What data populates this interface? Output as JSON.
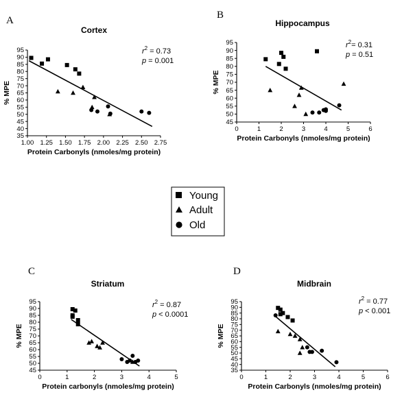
{
  "chart_data": [
    {
      "panel": "A",
      "type": "scatter",
      "title": "Cortex",
      "xlabel": "Protein Carbonyls (nmoles/mg protein)",
      "ylabel": "% MPE",
      "xlim": [
        1.0,
        2.75
      ],
      "ylim": [
        35,
        95
      ],
      "xticks": [
        "1.00",
        "1.25",
        "1.50",
        "1.75",
        "2.00",
        "2.25",
        "2.50",
        "2.75"
      ],
      "yticks": [
        "35",
        "40",
        "45",
        "50",
        "55",
        "60",
        "65",
        "70",
        "75",
        "80",
        "85",
        "90",
        "95"
      ],
      "stats": {
        "r2_label": "r",
        "r2_sup": "2",
        "r2_value": " = 0.73",
        "p_label": "p",
        "p_value": "  = 0.001"
      },
      "series": [
        {
          "name": "Young",
          "marker": "square",
          "points": [
            [
              1.05,
              89.5
            ],
            [
              1.19,
              85.5
            ],
            [
              1.27,
              88.5
            ],
            [
              1.52,
              84.5
            ],
            [
              1.63,
              81.5
            ],
            [
              1.68,
              78.5
            ]
          ]
        },
        {
          "name": "Adult",
          "marker": "triangle",
          "points": [
            [
              1.4,
              66
            ],
            [
              1.6,
              65
            ],
            [
              1.73,
              69
            ],
            [
              1.85,
              55
            ],
            [
              1.88,
              62
            ],
            [
              2.08,
              50
            ]
          ]
        },
        {
          "name": "Old",
          "marker": "circle",
          "points": [
            [
              1.84,
              53
            ],
            [
              1.92,
              52
            ],
            [
              2.06,
              55.5
            ],
            [
              2.09,
              50.5
            ],
            [
              2.5,
              52
            ],
            [
              2.6,
              51
            ]
          ]
        }
      ],
      "fit_line": [
        [
          1.02,
          87.5
        ],
        [
          2.64,
          41.5
        ]
      ]
    },
    {
      "panel": "B",
      "type": "scatter",
      "title": "Hippocampus",
      "xlabel": "Protein Carbonyls (nmoles/mg protein)",
      "ylabel": "% MPE",
      "xlim": [
        0,
        6
      ],
      "ylim": [
        45,
        95
      ],
      "xticks": [
        "0",
        "1",
        "2",
        "3",
        "4",
        "5",
        "6"
      ],
      "yticks": [
        "45",
        "50",
        "55",
        "60",
        "65",
        "70",
        "75",
        "80",
        "85",
        "90",
        "95"
      ],
      "stats": {
        "r2_label": "r",
        "r2_sup": "2",
        "r2_value": "= 0.31",
        "p_label": "p",
        "p_value": " = 0.51"
      },
      "series": [
        {
          "name": "Young",
          "marker": "square",
          "points": [
            [
              1.3,
              84.5
            ],
            [
              1.9,
              81.5
            ],
            [
              2.0,
              88.5
            ],
            [
              2.1,
              86
            ],
            [
              2.2,
              78.5
            ],
            [
              3.6,
              89.5
            ]
          ]
        },
        {
          "name": "Adult",
          "marker": "triangle",
          "points": [
            [
              1.5,
              65
            ],
            [
              2.6,
              55
            ],
            [
              2.8,
              62
            ],
            [
              2.9,
              66.5
            ],
            [
              3.1,
              50
            ],
            [
              4.8,
              69
            ]
          ]
        },
        {
          "name": "Old",
          "marker": "circle",
          "points": [
            [
              3.4,
              51
            ],
            [
              3.7,
              51
            ],
            [
              3.9,
              52.5
            ],
            [
              4.0,
              52
            ],
            [
              4.6,
              55.5
            ],
            [
              4.0,
              53
            ]
          ]
        }
      ],
      "fit_line": [
        [
          1.3,
          80
        ],
        [
          4.7,
          52.5
        ]
      ]
    },
    {
      "panel": "C",
      "type": "scatter",
      "title": "Striatum",
      "xlabel": "Protein carbonyls (nmoles/mg protein)",
      "ylabel": "% MPE",
      "xlim": [
        0,
        5
      ],
      "ylim": [
        45,
        95
      ],
      "xticks": [
        "0",
        "1",
        "2",
        "3",
        "4",
        "5"
      ],
      "yticks": [
        "45",
        "50",
        "55",
        "60",
        "65",
        "70",
        "75",
        "80",
        "85",
        "90",
        "95"
      ],
      "stats": {
        "r2_label": "r",
        "r2_sup": "2",
        "r2_value": " = 0.87",
        "p_label": "p",
        "p_value": " < 0.0001"
      },
      "series": [
        {
          "name": "Young",
          "marker": "square",
          "points": [
            [
              1.2,
              89.5
            ],
            [
              1.3,
              88.5
            ],
            [
              1.2,
              85
            ],
            [
              1.2,
              84
            ],
            [
              1.4,
              81.5
            ],
            [
              1.4,
              78.5
            ]
          ]
        },
        {
          "name": "Adult",
          "marker": "triangle",
          "points": [
            [
              1.8,
              65
            ],
            [
              1.9,
              66
            ],
            [
              2.1,
              62.5
            ],
            [
              2.2,
              61.5
            ],
            [
              2.3,
              65
            ],
            [
              3.4,
              51
            ]
          ]
        },
        {
          "name": "Old",
          "marker": "circle",
          "points": [
            [
              3.0,
              53
            ],
            [
              3.3,
              52
            ],
            [
              3.4,
              55.5
            ],
            [
              3.5,
              51
            ],
            [
              3.6,
              52
            ],
            [
              3.2,
              51
            ]
          ]
        }
      ],
      "fit_line": [
        [
          1.15,
          82
        ],
        [
          3.65,
          48
        ]
      ]
    },
    {
      "panel": "D",
      "type": "scatter",
      "title": "Midbrain",
      "xlabel": "Protein Carbonyls (nmoles/mg protein)",
      "ylabel": "% MPE",
      "xlim": [
        0,
        6
      ],
      "ylim": [
        35,
        95
      ],
      "xticks": [
        "0",
        "1",
        "2",
        "3",
        "4",
        "5",
        "6"
      ],
      "yticks": [
        "35",
        "40",
        "45",
        "50",
        "55",
        "60",
        "65",
        "70",
        "75",
        "80",
        "85",
        "90",
        "95"
      ],
      "stats": {
        "r2_label": "r",
        "r2_sup": "2",
        "r2_value": " = 0.77",
        "p_label": "p",
        "p_value": "  < 0.001"
      },
      "series": [
        {
          "name": "Young",
          "marker": "square",
          "points": [
            [
              1.5,
              89.5
            ],
            [
              1.6,
              88
            ],
            [
              1.7,
              85
            ],
            [
              1.6,
              84
            ],
            [
              1.9,
              81.5
            ],
            [
              2.1,
              78.5
            ]
          ]
        },
        {
          "name": "Adult",
          "marker": "triangle",
          "points": [
            [
              1.5,
              69
            ],
            [
              2.0,
              66.5
            ],
            [
              2.2,
              65
            ],
            [
              2.4,
              62
            ],
            [
              2.5,
              55
            ],
            [
              2.4,
              50
            ]
          ]
        },
        {
          "name": "Old",
          "marker": "circle",
          "points": [
            [
              1.4,
              83
            ],
            [
              2.7,
              55
            ],
            [
              2.8,
              51
            ],
            [
              2.9,
              51
            ],
            [
              3.3,
              52
            ],
            [
              3.9,
              42
            ]
          ]
        }
      ],
      "fit_line": [
        [
          1.4,
          82
        ],
        [
          3.85,
          38
        ]
      ]
    }
  ],
  "legend": [
    {
      "label": "Young",
      "marker": "square"
    },
    {
      "label": "Adult",
      "marker": "triangle"
    },
    {
      "label": "Old",
      "marker": "circle"
    }
  ]
}
